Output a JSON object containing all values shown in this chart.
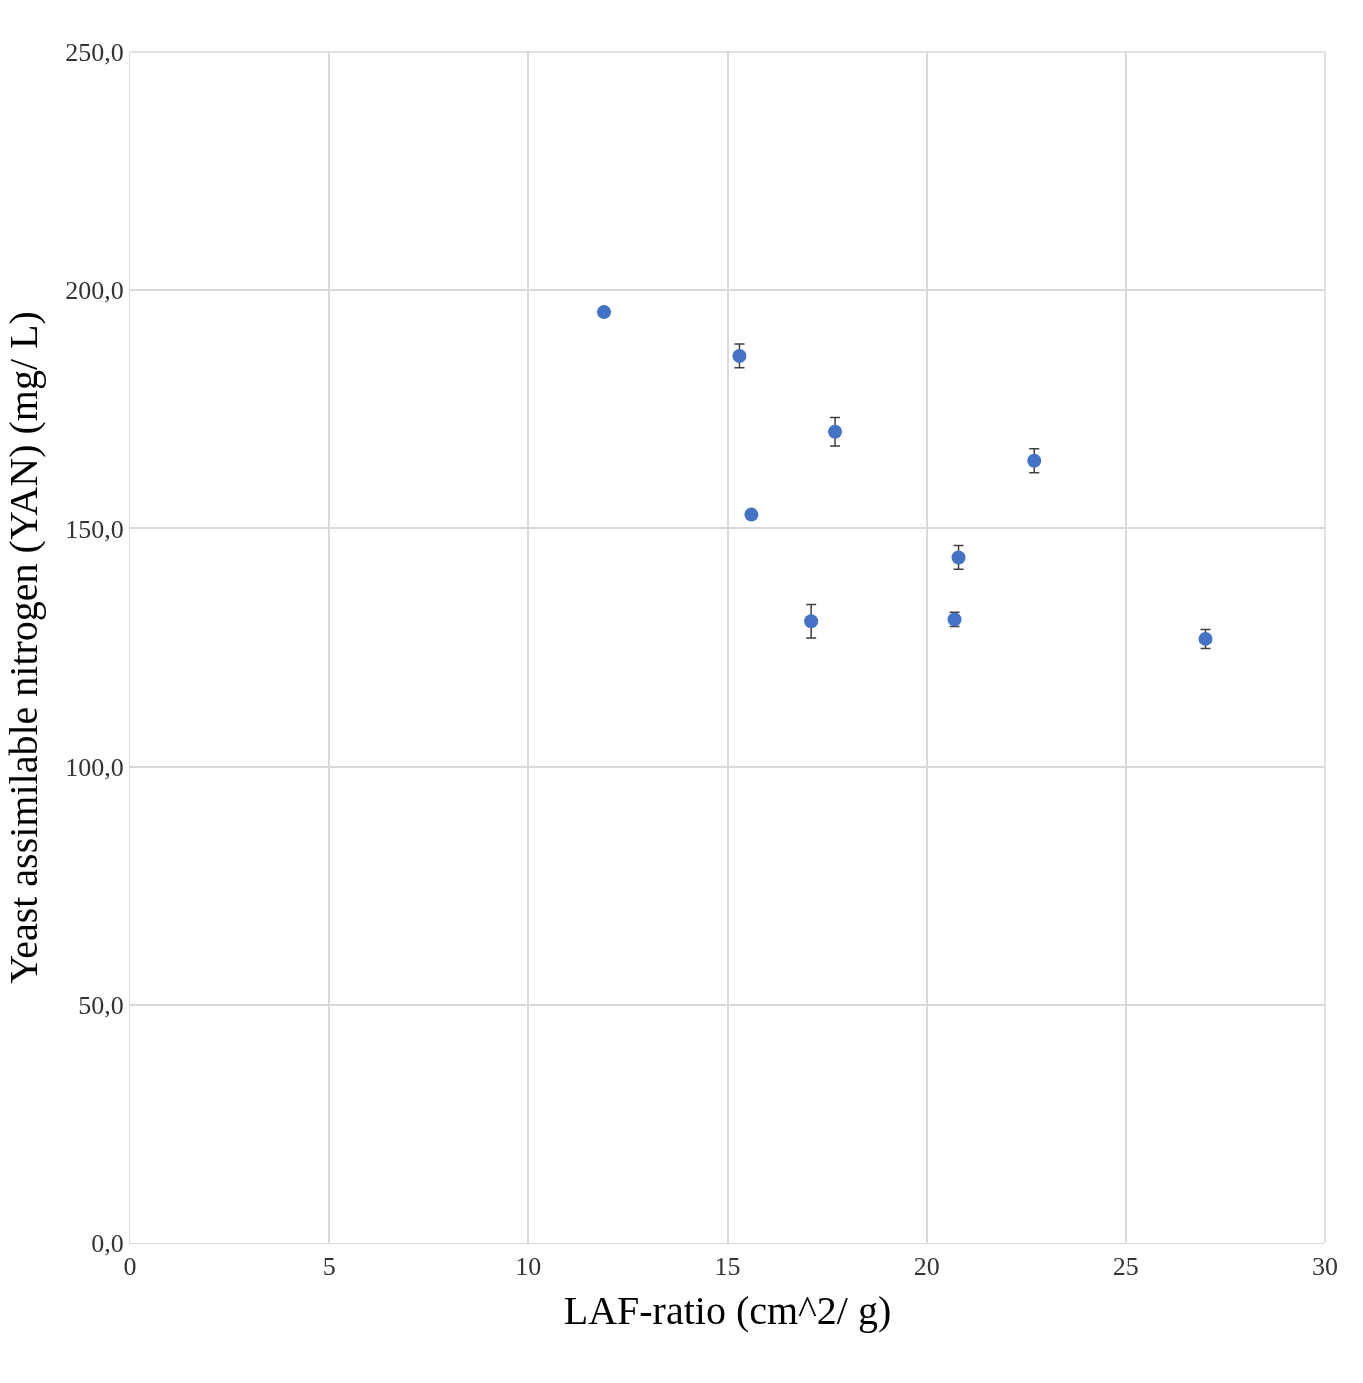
{
  "chart_data": {
    "type": "scatter",
    "xlabel": "LAF-ratio (cm^2/ g)",
    "ylabel": "Yeast assimilable nitrogen (YAN) (mg/ L)",
    "x": [
      11.9,
      15.3,
      17.7,
      15.6,
      17.1,
      20.7,
      20.8,
      22.7,
      27.0
    ],
    "series": [
      {
        "color": "#4472c4",
        "values": [
          195.4,
          186.2,
          170.3,
          152.9,
          130.5,
          130.9,
          143.9,
          164.2,
          126.8
        ],
        "errors": [
          null,
          2.5,
          3,
          null,
          3.5,
          1.5,
          2.5,
          2.5,
          2
        ]
      }
    ],
    "xlim": [
      0,
      30
    ],
    "xticks": [
      0,
      5,
      10,
      15,
      20,
      25,
      30
    ],
    "ylim": [
      0,
      250
    ],
    "yticks": [
      {
        "value": 0,
        "label": "0,0"
      },
      {
        "value": 50,
        "label": "50,0"
      },
      {
        "value": 100,
        "label": "100,0"
      },
      {
        "value": 150,
        "label": "150,0"
      },
      {
        "value": 200,
        "label": "200,0"
      },
      {
        "value": 250,
        "label": "250,0"
      }
    ],
    "grid": true,
    "marker": "circle"
  }
}
